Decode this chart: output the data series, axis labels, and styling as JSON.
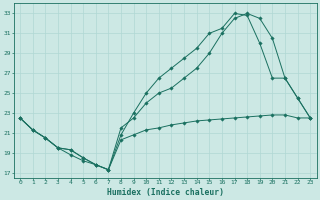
{
  "xlabel": "Humidex (Indice chaleur)",
  "background_color": "#cce8e4",
  "grid_color": "#b0d8d4",
  "line_color": "#1a7060",
  "xlim": [
    -0.5,
    23.5
  ],
  "ylim": [
    16.5,
    34
  ],
  "yticks": [
    17,
    19,
    21,
    23,
    25,
    27,
    29,
    31,
    33
  ],
  "xticks": [
    0,
    1,
    2,
    3,
    4,
    5,
    6,
    7,
    8,
    9,
    10,
    11,
    12,
    13,
    14,
    15,
    16,
    17,
    18,
    19,
    20,
    21,
    22,
    23
  ],
  "line1_x": [
    0,
    1,
    2,
    3,
    4,
    5,
    6,
    7,
    8,
    9,
    10,
    11,
    12,
    13,
    14,
    15,
    16,
    17,
    18,
    19,
    20,
    21,
    22,
    23
  ],
  "line1_y": [
    22.5,
    21.3,
    20.5,
    19.5,
    19.3,
    18.5,
    17.8,
    17.3,
    20.3,
    20.8,
    21.3,
    21.5,
    21.8,
    22.0,
    22.2,
    22.3,
    22.4,
    22.5,
    22.6,
    22.7,
    22.8,
    22.8,
    22.5,
    22.5
  ],
  "line2_x": [
    0,
    1,
    2,
    3,
    4,
    5,
    6,
    7,
    8,
    9,
    10,
    11,
    12,
    13,
    14,
    15,
    16,
    17,
    18,
    19,
    20,
    21,
    22,
    23
  ],
  "line2_y": [
    22.5,
    21.3,
    20.5,
    19.5,
    19.3,
    18.5,
    17.8,
    17.3,
    20.8,
    23.0,
    25.0,
    26.5,
    27.5,
    28.5,
    29.5,
    31.0,
    31.5,
    33.0,
    32.8,
    30.0,
    26.5,
    26.5,
    24.5,
    22.5
  ],
  "line3_x": [
    0,
    1,
    2,
    3,
    4,
    5,
    6,
    7,
    8,
    9,
    10,
    11,
    12,
    13,
    14,
    15,
    16,
    17,
    18,
    19,
    20,
    21,
    22,
    23
  ],
  "line3_y": [
    22.5,
    21.3,
    20.5,
    19.5,
    18.8,
    18.2,
    17.8,
    17.3,
    21.5,
    22.5,
    24.0,
    25.0,
    25.5,
    26.5,
    27.5,
    29.0,
    31.0,
    32.5,
    33.0,
    32.5,
    30.5,
    26.5,
    24.5,
    22.5
  ]
}
